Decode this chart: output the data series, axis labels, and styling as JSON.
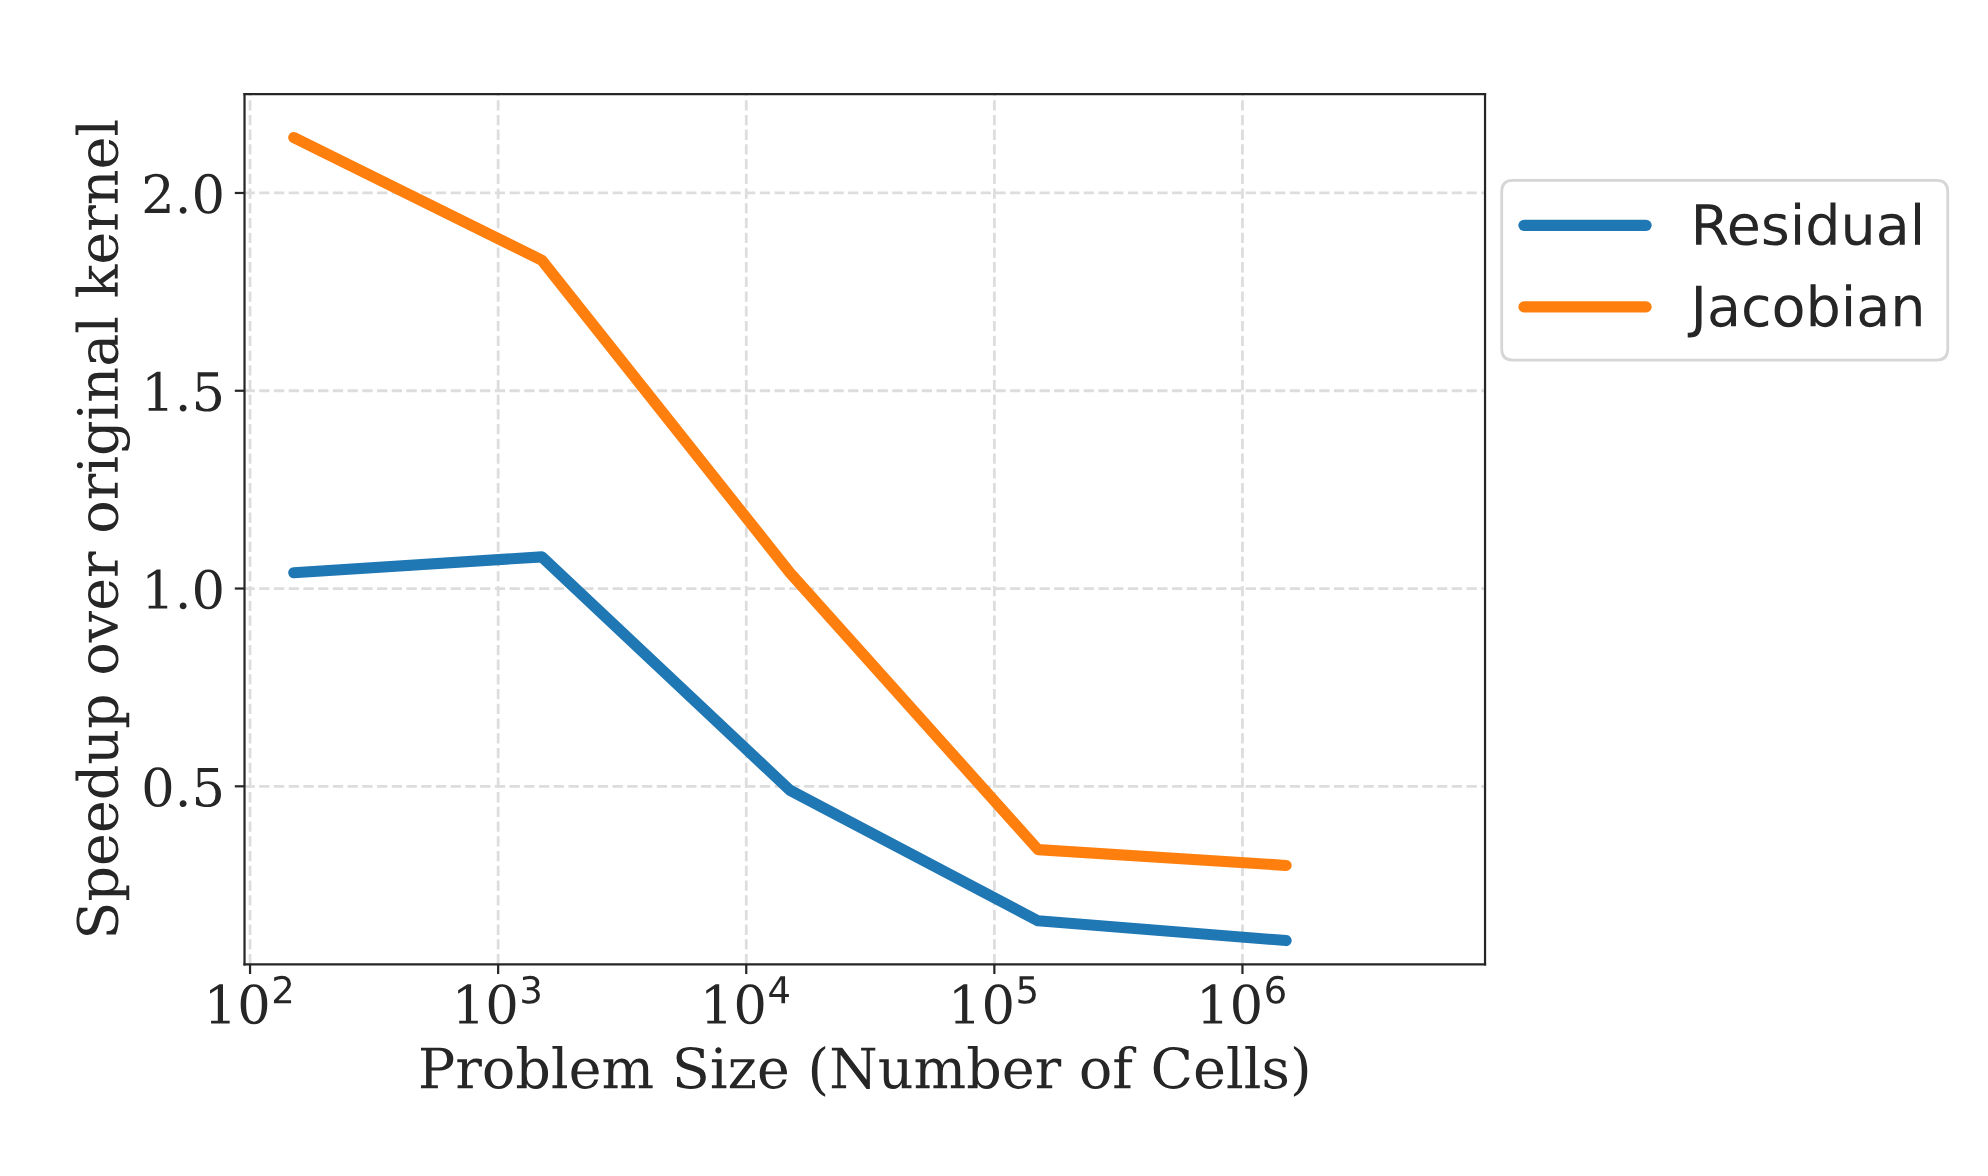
{
  "chart_data": {
    "type": "line",
    "xlabel": "Problem Size (Number of Cells)",
    "ylabel": "Speedup over original kernel",
    "x": [
      150,
      1500,
      15000,
      150000,
      1500000
    ],
    "series": [
      {
        "name": "Residual",
        "color": "#1f77b4",
        "values": [
          1.04,
          1.08,
          0.49,
          0.16,
          0.11
        ]
      },
      {
        "name": "Jacobian",
        "color": "#ff7f0e",
        "values": [
          2.14,
          1.83,
          1.04,
          0.34,
          0.3
        ]
      }
    ],
    "log": "x",
    "xlim": [
      95,
      9500000
    ],
    "ylim": [
      0.05,
      2.25
    ],
    "xticks": [
      {
        "value": 100,
        "label": "10$^{2}$"
      },
      {
        "value": 1000,
        "label": "10$^{3}$"
      },
      {
        "value": 10000,
        "label": "10$^{4}$"
      },
      {
        "value": 100000,
        "label": "10$^{5}$"
      },
      {
        "value": 1000000,
        "label": "10$^{6}$"
      }
    ],
    "yticks": [
      0.5,
      {
        "value": 1,
        "label": "1.0"
      },
      1.5,
      {
        "value": 2,
        "label": "2.0"
      }
    ],
    "grid": true,
    "legend": "top right",
    "marker": "none",
    "line_style": "solid"
  }
}
